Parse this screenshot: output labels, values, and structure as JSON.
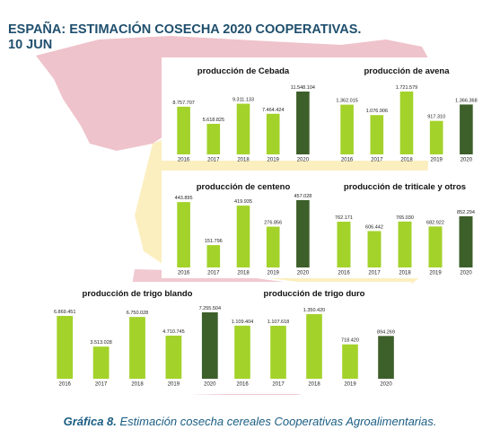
{
  "header": {
    "title_line1": "ESPAÑA: ESTIMACIÓN COSECHA 2020 COOPERATIVAS.",
    "title_line2": "10 JUN"
  },
  "caption": {
    "label": "Gráfica 8.",
    "text": " Estimación cosecha cereales Cooperativas Agroalimentarias."
  },
  "colors": {
    "bar_light": "#a3d22a",
    "bar_dark": "#3d5f2a",
    "map_pink": "#efc3cb",
    "map_yellow": "#fbefc0",
    "title_blue": "#1f4f6d"
  },
  "chart_data": [
    {
      "type": "bar",
      "title": "producción de Cebada",
      "categories": [
        "2016",
        "2017",
        "2018",
        "2019",
        "2020"
      ],
      "values": [
        8757707,
        5618825,
        9311133,
        7464424,
        11548104
      ],
      "labels": [
        "8.757.707",
        "5.618.825",
        "9.311.133",
        "7.464.424",
        "11.548.104"
      ]
    },
    {
      "type": "bar",
      "title": "producción de avena",
      "categories": [
        "2016",
        "2017",
        "2018",
        "2019",
        "2020"
      ],
      "values": [
        1362015,
        1076906,
        1721579,
        917310,
        1366368
      ],
      "labels": [
        "1.362.015",
        "1.076.906",
        "1.721.579",
        "917.310",
        "1.366.368"
      ]
    },
    {
      "type": "bar",
      "title": "producción de centeno",
      "categories": [
        "2016",
        "2017",
        "2018",
        "2019",
        "2020"
      ],
      "values": [
        443895,
        151796,
        419935,
        276856,
        457028
      ],
      "labels": [
        "443.895",
        "151.796",
        "419.935",
        "276.856",
        "457.028"
      ]
    },
    {
      "type": "bar",
      "title": "producción de triticale y otros",
      "categories": [
        "2016",
        "2017",
        "2018",
        "2019",
        "2020"
      ],
      "values": [
        762171,
        606442,
        765030,
        682922,
        852294
      ],
      "labels": [
        "762.171",
        "606.442",
        "765.030",
        "682.922",
        "852.294"
      ]
    },
    {
      "type": "bar",
      "title": "producción de trigo blando",
      "categories": [
        "2016",
        "2017",
        "2018",
        "2019",
        "2020"
      ],
      "values": [
        6869451,
        3513028,
        6750028,
        4710745,
        7255504
      ],
      "labels": [
        "6.869.451",
        "3.513.028",
        "6.750.028",
        "4.710.745",
        "7.255.504"
      ]
    },
    {
      "type": "bar",
      "title": "producción de trigo duro",
      "categories": [
        "2016",
        "2017",
        "2018",
        "2019",
        "2020"
      ],
      "values": [
        1109404,
        1107618,
        1350420,
        718420,
        894269
      ],
      "labels": [
        "1.109.404",
        "1.107.618",
        "1.350.420",
        "718.420",
        "894.269"
      ]
    }
  ]
}
